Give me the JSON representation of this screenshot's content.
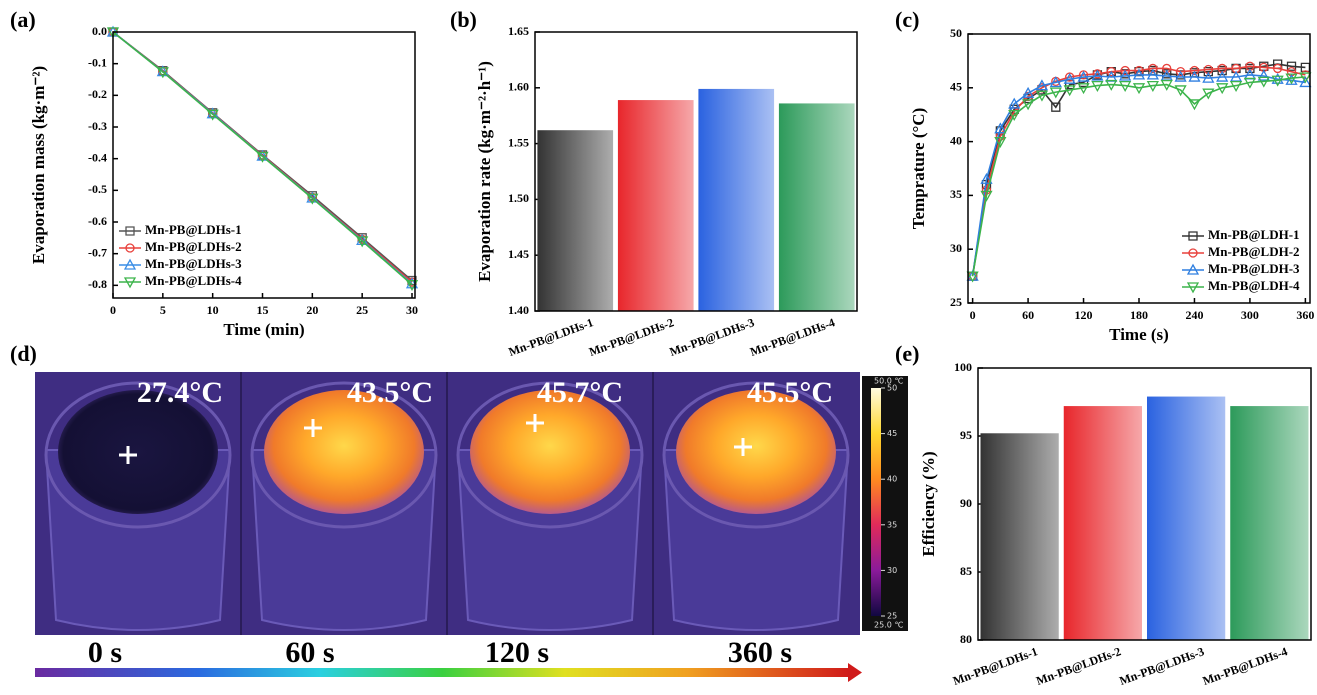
{
  "chart_data": [
    {
      "type": "line",
      "panel_label": "(a)",
      "x_label": "Time (min)",
      "y_label": "Evaporation mass (kg·m⁻²)",
      "x": [
        0,
        5,
        10,
        15,
        20,
        25,
        30
      ],
      "xlim": [
        0,
        30.3
      ],
      "xticks": [
        0,
        5,
        10,
        15,
        20,
        25,
        30
      ],
      "ylim": [
        -0.84,
        0
      ],
      "yticks": [
        {
          "value": 0,
          "label": "0.0"
        },
        -0.1,
        -0.2,
        -0.3,
        -0.4,
        -0.5,
        -0.6,
        -0.7,
        -0.8
      ],
      "markers": true,
      "legend": "lower left",
      "series": [
        {
          "name": "Mn-PB@LDHs-1",
          "color": "#555555",
          "values": [
            0,
            -0.122,
            -0.255,
            -0.388,
            -0.517,
            -0.65,
            -0.785
          ]
        },
        {
          "name": "Mn-PB@LDHs-2",
          "color": "#e8413c",
          "values": [
            0,
            -0.124,
            -0.257,
            -0.39,
            -0.522,
            -0.655,
            -0.79
          ]
        },
        {
          "name": "Mn-PB@LDHs-3",
          "color": "#3a8ee6",
          "values": [
            0,
            -0.125,
            -0.258,
            -0.392,
            -0.524,
            -0.658,
            -0.795
          ]
        },
        {
          "name": "Mn-PB@LDHs-4",
          "color": "#3cb44b",
          "values": [
            0,
            -0.126,
            -0.26,
            -0.393,
            -0.525,
            -0.66,
            -0.798
          ]
        }
      ]
    },
    {
      "type": "bar",
      "panel_label": "(b)",
      "y_label": "Evaporation rate (kg·m⁻²·h⁻¹)",
      "categories": [
        "Mn-PB@LDHs-1",
        "Mn-PB@LDHs-2",
        "Mn-PB@LDHs-3",
        "Mn-PB@LDHs-4"
      ],
      "values": [
        1.562,
        1.589,
        1.599,
        1.586
      ],
      "colors": [
        "#333333",
        "#e8262b",
        "#2a62e0",
        "#2c9a5a"
      ],
      "ylim": [
        1.4,
        1.65
      ],
      "yticks": [
        {
          "value": 1.4,
          "label": "1.40"
        },
        1.45,
        {
          "value": 1.5,
          "label": "1.50"
        },
        1.55,
        {
          "value": 1.6,
          "label": "1.60"
        },
        1.65
      ]
    },
    {
      "type": "line",
      "panel_label": "(c)",
      "x_label": "Time (s)",
      "y_label": "Temprature (°C)",
      "x": [
        0,
        15,
        30,
        45,
        60,
        75,
        90,
        105,
        120,
        135,
        150,
        165,
        180,
        195,
        210,
        225,
        240,
        255,
        270,
        285,
        300,
        315,
        330,
        345,
        360
      ],
      "xlim": [
        -5,
        365
      ],
      "xticks": [
        0,
        60,
        120,
        180,
        240,
        300,
        360
      ],
      "ylim": [
        25,
        50
      ],
      "yticks": [
        25,
        30,
        35,
        40,
        45,
        50
      ],
      "markers": true,
      "legend": "lower right",
      "series": [
        {
          "name": "Mn-PB@LDH-1",
          "color": "#333333",
          "values": [
            27.5,
            36,
            41,
            43,
            44,
            44.8,
            43.2,
            45.3,
            45.5,
            46.2,
            46.5,
            46.3,
            46.5,
            46.6,
            46.3,
            46.2,
            46.4,
            46.5,
            46.6,
            46.8,
            46.8,
            47,
            47.2,
            47,
            46.9
          ]
        },
        {
          "name": "Mn-PB@LDH-2",
          "color": "#e8413c",
          "values": [
            27.5,
            35.5,
            40.5,
            42.8,
            44.2,
            45,
            45.6,
            46,
            46.2,
            46.3,
            46.5,
            46.6,
            46.6,
            46.8,
            46.8,
            46.5,
            46.6,
            46.7,
            46.8,
            46.8,
            47,
            46.9,
            46.8,
            46.5,
            46.2
          ]
        },
        {
          "name": "Mn-PB@LDH-3",
          "color": "#2f7fe0",
          "values": [
            27.5,
            36.5,
            41.2,
            43.5,
            44.5,
            45.2,
            45.5,
            45.8,
            46,
            46.1,
            46,
            46.1,
            46.2,
            46.2,
            46.1,
            46,
            46,
            45.9,
            46,
            46,
            46.2,
            46.1,
            45.8,
            45.7,
            45.5
          ]
        },
        {
          "name": "Mn-PB@LDH-4",
          "color": "#3cb44b",
          "values": [
            27.5,
            35,
            40,
            42.5,
            43.5,
            44.3,
            44.6,
            44.8,
            45,
            45.2,
            45.3,
            45.2,
            45,
            45.2,
            45.3,
            44.8,
            43.5,
            44.5,
            45,
            45.2,
            45.5,
            45.6,
            45.7,
            45.9,
            46
          ]
        }
      ]
    },
    {
      "type": "bar",
      "panel_label": "(e)",
      "y_label": "Efficiency (%)",
      "categories": [
        "Mn-PB@LDHs-1",
        "Mn-PB@LDHs-2",
        "Mn-PB@LDHs-3",
        "Mn-PB@LDHs-4"
      ],
      "values": [
        95.2,
        97.2,
        97.9,
        97.2
      ],
      "colors": [
        "#333333",
        "#e8262b",
        "#2a62e0",
        "#2c9a5a"
      ],
      "ylim": [
        80,
        100
      ],
      "yticks": [
        80,
        85,
        90,
        95,
        100
      ]
    }
  ],
  "thermal_panel": {
    "panel_label": "(d)",
    "temperatures": [
      "27.4°C",
      "43.5°C",
      "45.7°C",
      "45.5°C"
    ],
    "times": [
      "0 s",
      "60 s",
      "120 s",
      "360 s"
    ],
    "colorbar": {
      "max_label": "50.0 ℃",
      "min_label": "25.0 ℃",
      "lim": [
        25,
        50
      ],
      "ticks": [
        25,
        30,
        35,
        40,
        45,
        50
      ]
    }
  }
}
